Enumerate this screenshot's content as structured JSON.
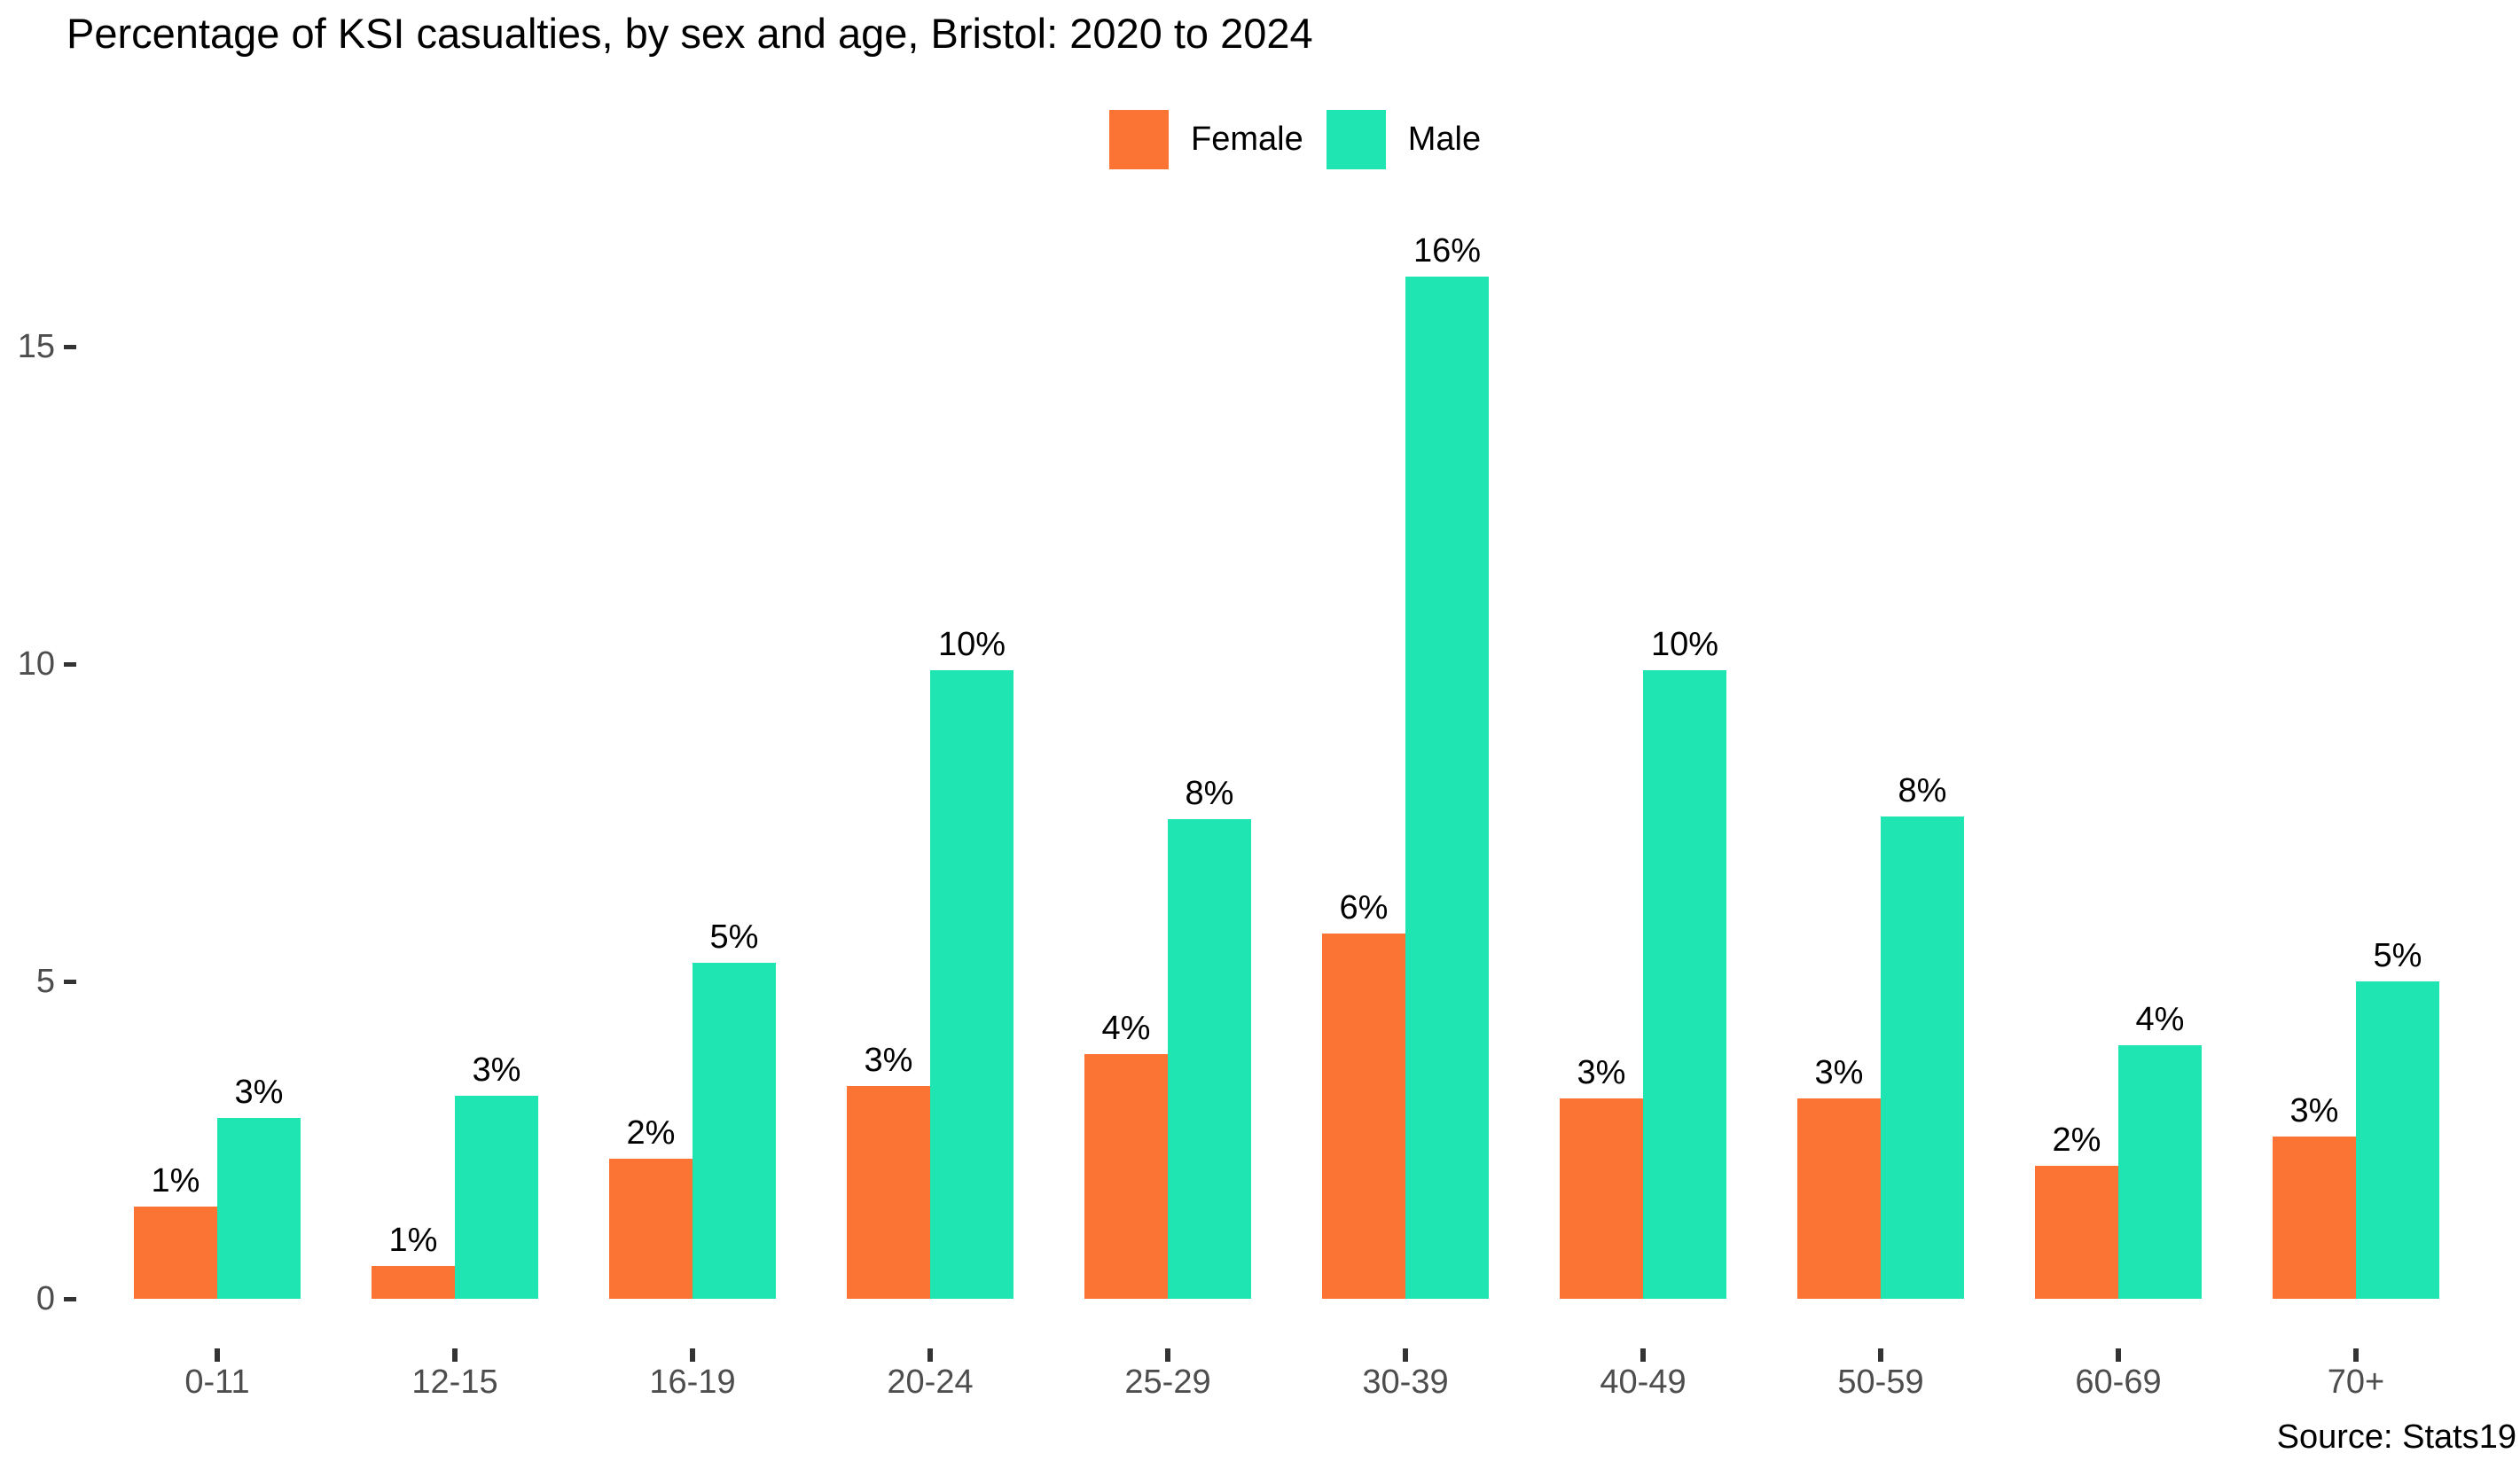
{
  "page": {
    "background": "#ffffff"
  },
  "title": "Percentage of KSI casualties, by sex and age, Bristol: 2020 to 2024",
  "source_note": "Source: Stats19",
  "legend": {
    "items": [
      {
        "label": "Female",
        "color": "#fb7434"
      },
      {
        "label": "Male",
        "color": "#1fe5b2"
      }
    ]
  },
  "chart_data": {
    "type": "bar",
    "title": "Percentage of KSI casualties, by sex and age, Bristol: 2020 to 2024",
    "categories": [
      "0-11",
      "12-15",
      "16-19",
      "20-24",
      "25-29",
      "30-39",
      "40-49",
      "50-59",
      "60-69",
      "70+"
    ],
    "series": [
      {
        "name": "Female",
        "color": "#fb7434",
        "values": [
          1.45,
          0.52,
          2.2,
          3.35,
          3.85,
          5.75,
          3.15,
          3.15,
          2.1,
          2.55
        ],
        "data_labels": [
          "1%",
          "1%",
          "2%",
          "3%",
          "4%",
          "6%",
          "3%",
          "3%",
          "2%",
          "3%"
        ]
      },
      {
        "name": "Male",
        "color": "#1fe5b2",
        "values": [
          2.85,
          3.2,
          5.3,
          9.9,
          7.55,
          16.1,
          9.9,
          7.6,
          4.0,
          5.0
        ],
        "data_labels": [
          "3%",
          "3%",
          "5%",
          "10%",
          "8%",
          "16%",
          "10%",
          "8%",
          "4%",
          "5%"
        ]
      }
    ],
    "xlabel": "",
    "ylabel": "",
    "y_ticks": [
      0,
      5,
      10,
      15
    ],
    "y_tick_labels": [
      "0",
      "5",
      "10",
      "15"
    ],
    "ylim": [
      0,
      17
    ],
    "value_unit": "percent",
    "grid": false,
    "legend_position": "top-center",
    "source": "Source: Stats19",
    "axis_text_color": "#4d4d4d",
    "tick_mark_color": "#333333",
    "data_label_color": "#000000"
  }
}
